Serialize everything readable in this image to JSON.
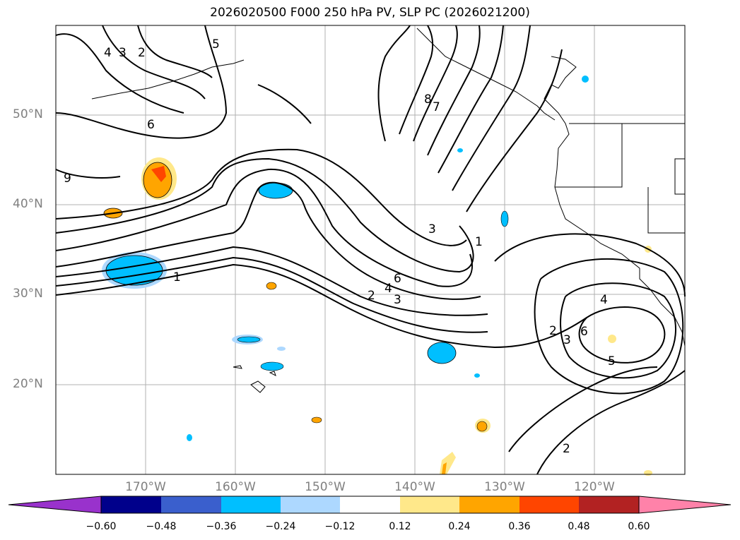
{
  "title": "2026020500 F000 250 hPa PV, SLP PC (2026021200)",
  "chart_data": {
    "type": "contour-map",
    "title": "2026020500 F000 250 hPa PV, SLP PC (2026021200)",
    "x_ticks": [
      "170°W",
      "160°W",
      "150°W",
      "140°W",
      "130°W",
      "120°W"
    ],
    "y_ticks": [
      "20°N",
      "30°N",
      "40°N",
      "50°N"
    ],
    "lon_range": [
      -180,
      -110
    ],
    "lat_range": [
      10,
      60
    ],
    "grid": true,
    "colorbar": {
      "ticks": [
        "−0.60",
        "−0.48",
        "−0.36",
        "−0.24",
        "−0.12",
        "0.12",
        "0.24",
        "0.36",
        "0.48",
        "0.60"
      ],
      "colors": [
        "#9932cc",
        "#00008b",
        "#3a5fcd",
        "#00bfff",
        "#add8ff",
        "#ffffff",
        "#ffe88a",
        "#ffa500",
        "#ff4500",
        "#b22222",
        "#ff82a9"
      ],
      "extend": "both"
    },
    "contour_labels": [
      "4",
      "3",
      "2",
      "5",
      "6",
      "9",
      "8",
      "7",
      "1",
      "1",
      "6",
      "4",
      "3",
      "2",
      "3",
      "4",
      "2",
      "3",
      "6",
      "5",
      "2"
    ]
  }
}
